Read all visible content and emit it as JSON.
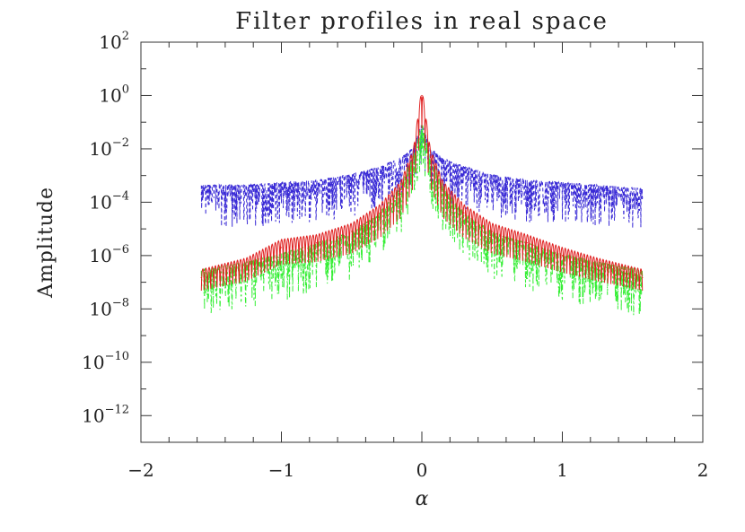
{
  "chart_data": {
    "type": "line",
    "title": "Filter profiles in real space",
    "xlabel": "α",
    "ylabel": "Amplitude",
    "xlim": [
      -2,
      2
    ],
    "ylim_log10": [
      -13,
      2
    ],
    "yscale": "log",
    "x_ticks": [
      {
        "value": -2,
        "label": "−2"
      },
      {
        "value": -1,
        "label": "−1"
      },
      {
        "value": 0,
        "label": "0"
      },
      {
        "value": 1,
        "label": "1"
      },
      {
        "value": 2,
        "label": "2"
      }
    ],
    "y_ticks": [
      {
        "exp": 2,
        "base": "10",
        "sup": "2"
      },
      {
        "exp": 0,
        "base": "10",
        "sup": "0"
      },
      {
        "exp": -2,
        "base": "10",
        "sup": "−2"
      },
      {
        "exp": -4,
        "base": "10",
        "sup": "−4"
      },
      {
        "exp": -6,
        "base": "10",
        "sup": "−6"
      },
      {
        "exp": -8,
        "base": "10",
        "sup": "−8"
      },
      {
        "exp": -10,
        "base": "10",
        "sup": "−10"
      },
      {
        "exp": -12,
        "base": "10",
        "sup": "−12"
      }
    ],
    "series": [
      {
        "key": "blue",
        "color": "#3a2bd6",
        "dash": "4,3",
        "x": [
          -1.57,
          -1.25,
          -1.0,
          -0.75,
          -0.5,
          -0.3,
          -0.15,
          -0.06,
          0.0,
          0.06,
          0.15,
          0.3,
          0.5,
          0.75,
          1.0,
          1.25,
          1.57
        ],
        "y": [
          0.0002,
          0.0002,
          0.00025,
          0.0003,
          0.0005,
          0.001,
          0.002,
          0.005,
          0.04,
          0.005,
          0.002,
          0.001,
          0.0005,
          0.0003,
          0.00025,
          0.0002,
          0.00015
        ]
      },
      {
        "key": "red",
        "color": "#e02020",
        "dash": "",
        "x": [
          -1.57,
          -1.25,
          -1.0,
          -0.75,
          -0.5,
          -0.3,
          -0.15,
          -0.06,
          0.0,
          0.06,
          0.15,
          0.3,
          0.5,
          0.75,
          1.0,
          1.25,
          1.57
        ],
        "y": [
          1.5e-07,
          4e-07,
          2e-06,
          3e-06,
          8e-06,
          4e-05,
          0.0003,
          0.005,
          1.0,
          0.005,
          0.0003,
          4e-05,
          8e-06,
          3e-06,
          1e-06,
          4e-07,
          1.5e-07
        ]
      },
      {
        "key": "green",
        "color": "#33ee33",
        "dash": "6,3,2,3",
        "x": [
          -1.57,
          -1.25,
          -1.0,
          -0.75,
          -0.5,
          -0.3,
          -0.15,
          -0.06,
          0.0,
          0.06,
          0.15,
          0.3,
          0.5,
          0.75,
          1.0,
          1.25,
          1.57
        ],
        "y": [
          1.5e-07,
          3e-07,
          6e-07,
          1.5e-06,
          4e-06,
          2e-05,
          0.0002,
          0.003,
          0.05,
          0.003,
          0.0002,
          2e-05,
          4e-06,
          1.5e-06,
          6e-07,
          3e-07,
          1.5e-07
        ]
      }
    ]
  }
}
